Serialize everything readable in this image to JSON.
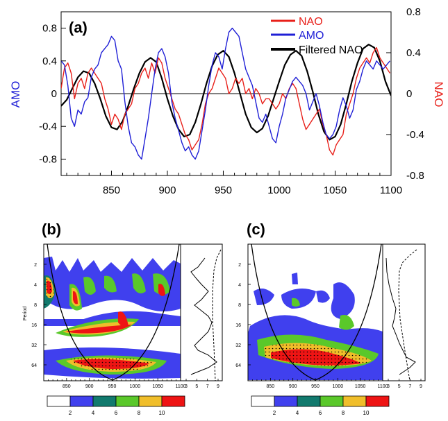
{
  "chart_data": [
    {
      "panel_label": "(a)",
      "type": "line",
      "xlabel": "",
      "ylabel_left": "AMO",
      "ylabel_right": "NAO",
      "xlim": [
        805,
        1100
      ],
      "ylim_left": [
        -1.0,
        1.0
      ],
      "ylim_right": [
        -0.8,
        0.8
      ],
      "x_ticks": [
        850,
        900,
        950,
        1000,
        1050,
        1100
      ],
      "y_ticks_left": [
        "0.8",
        "0.4",
        "0",
        "-0.4",
        "-0.8"
      ],
      "y_ticks_left_values": [
        0.8,
        0.4,
        0,
        -0.4,
        -0.8
      ],
      "y_ticks_right": [
        "0.8",
        "0.4",
        "0",
        "-0.4",
        "-0.8"
      ],
      "y_ticks_right_values": [
        0.8,
        0.4,
        0,
        -0.4,
        -0.8
      ],
      "zero_line": true,
      "legend_position": "top-right",
      "colors": {
        "NAO": "#e8201a",
        "AMO": "#1f1fd6",
        "Filtered NAO": "#000000",
        "left_axis": "#1f1fd6",
        "right_axis": "#e8201a"
      },
      "series": [
        {
          "name": "NAO",
          "axis": "right",
          "x": [
            805,
            808,
            811,
            814,
            817,
            820,
            823,
            826,
            829,
            832,
            835,
            838,
            841,
            844,
            847,
            850,
            853,
            856,
            859,
            862,
            865,
            868,
            871,
            874,
            877,
            880,
            883,
            886,
            889,
            892,
            895,
            898,
            901,
            904,
            907,
            910,
            913,
            916,
            919,
            922,
            925,
            928,
            931,
            934,
            937,
            940,
            943,
            946,
            949,
            952,
            955,
            958,
            961,
            964,
            967,
            970,
            973,
            976,
            979,
            982,
            985,
            988,
            991,
            994,
            997,
            1000,
            1003,
            1006,
            1009,
            1012,
            1015,
            1018,
            1021,
            1024,
            1027,
            1030,
            1033,
            1036,
            1039,
            1042,
            1045,
            1048,
            1051,
            1054,
            1057,
            1060,
            1063,
            1066,
            1069,
            1072,
            1075,
            1078,
            1081,
            1084,
            1087,
            1090,
            1093,
            1096,
            1099
          ],
          "y": [
            0.05,
            0.25,
            0.3,
            0.2,
            -0.05,
            0.1,
            0.15,
            0.05,
            0.2,
            0.25,
            0.2,
            0.15,
            0.1,
            -0.05,
            -0.15,
            -0.3,
            -0.2,
            -0.25,
            -0.35,
            -0.2,
            -0.15,
            -0.1,
            0.05,
            0.1,
            0.2,
            0.25,
            0.15,
            0.3,
            0.2,
            0.35,
            0.3,
            0.15,
            0.05,
            -0.05,
            -0.15,
            -0.2,
            -0.3,
            -0.4,
            -0.45,
            -0.55,
            -0.5,
            -0.45,
            -0.3,
            -0.1,
            0.0,
            0.05,
            0.15,
            0.25,
            0.2,
            0.15,
            0.0,
            0.05,
            0.15,
            0.1,
            0.15,
            0.0,
            0.05,
            -0.05,
            0.05,
            0.0,
            -0.1,
            -0.05,
            -0.05,
            -0.1,
            -0.15,
            -0.1,
            0.0,
            -0.05,
            0.05,
            0.1,
            0.05,
            -0.1,
            -0.25,
            -0.35,
            -0.3,
            -0.25,
            -0.2,
            -0.15,
            -0.3,
            -0.4,
            -0.55,
            -0.6,
            -0.5,
            -0.45,
            -0.4,
            -0.2,
            -0.1,
            0.0,
            0.15,
            0.25,
            0.3,
            0.35,
            0.3,
            0.4,
            0.45,
            0.35,
            0.3,
            0.25,
            0.2
          ]
        },
        {
          "name": "AMO",
          "axis": "left",
          "x": [
            805,
            808,
            811,
            814,
            817,
            820,
            823,
            826,
            829,
            832,
            835,
            838,
            841,
            844,
            847,
            850,
            853,
            856,
            859,
            862,
            865,
            868,
            871,
            874,
            877,
            880,
            883,
            886,
            889,
            892,
            895,
            898,
            901,
            904,
            907,
            910,
            913,
            916,
            919,
            922,
            925,
            928,
            931,
            934,
            937,
            940,
            943,
            946,
            949,
            952,
            955,
            958,
            961,
            964,
            967,
            970,
            973,
            976,
            979,
            982,
            985,
            988,
            991,
            994,
            997,
            1000,
            1003,
            1006,
            1009,
            1012,
            1015,
            1018,
            1021,
            1024,
            1027,
            1030,
            1033,
            1036,
            1039,
            1042,
            1045,
            1048,
            1051,
            1054,
            1057,
            1060,
            1063,
            1066,
            1069,
            1072,
            1075,
            1078,
            1081,
            1084,
            1087,
            1090,
            1093,
            1096,
            1099
          ],
          "y": [
            0.4,
            0.35,
            0.1,
            -0.3,
            -0.4,
            -0.2,
            -0.25,
            -0.1,
            -0.05,
            0.2,
            0.3,
            0.35,
            0.5,
            0.55,
            0.6,
            0.7,
            0.65,
            0.4,
            0.3,
            -0.1,
            -0.4,
            -0.6,
            -0.65,
            -0.75,
            -0.8,
            -0.55,
            -0.3,
            0.0,
            0.3,
            0.5,
            0.55,
            0.45,
            0.25,
            -0.1,
            -0.3,
            -0.45,
            -0.6,
            -0.7,
            -0.65,
            -0.75,
            -0.8,
            -0.7,
            -0.45,
            -0.2,
            0.1,
            0.35,
            0.5,
            0.45,
            0.3,
            0.55,
            0.75,
            0.8,
            0.75,
            0.7,
            0.5,
            0.3,
            0.2,
            0.1,
            -0.1,
            -0.3,
            -0.35,
            -0.25,
            -0.4,
            -0.55,
            -0.6,
            -0.4,
            -0.25,
            -0.05,
            0.05,
            0.15,
            0.2,
            0.15,
            0.1,
            0.0,
            -0.2,
            -0.1,
            0.0,
            -0.15,
            -0.35,
            -0.5,
            -0.55,
            -0.5,
            -0.4,
            -0.2,
            -0.05,
            -0.15,
            -0.3,
            -0.2,
            0.05,
            0.15,
            0.3,
            0.4,
            0.35,
            0.3,
            0.4,
            0.35,
            0.3,
            0.35,
            0.4
          ]
        },
        {
          "name": "Filtered NAO",
          "axis": "right",
          "x": [
            805,
            810,
            815,
            820,
            825,
            830,
            835,
            840,
            845,
            850,
            855,
            860,
            865,
            870,
            875,
            880,
            885,
            890,
            895,
            900,
            905,
            910,
            915,
            920,
            925,
            930,
            935,
            940,
            945,
            950,
            955,
            960,
            965,
            970,
            975,
            980,
            985,
            990,
            995,
            1000,
            1005,
            1010,
            1015,
            1020,
            1025,
            1030,
            1035,
            1040,
            1045,
            1050,
            1055,
            1060,
            1065,
            1070,
            1075,
            1080,
            1085,
            1090,
            1095,
            1100
          ],
          "y": [
            -0.12,
            -0.06,
            0.05,
            0.16,
            0.22,
            0.2,
            0.1,
            -0.05,
            -0.22,
            -0.33,
            -0.35,
            -0.27,
            -0.12,
            0.05,
            0.2,
            0.31,
            0.35,
            0.31,
            0.15,
            -0.05,
            -0.22,
            -0.35,
            -0.42,
            -0.4,
            -0.28,
            -0.1,
            0.1,
            0.27,
            0.38,
            0.42,
            0.36,
            0.2,
            0.0,
            -0.2,
            -0.33,
            -0.38,
            -0.34,
            -0.22,
            -0.05,
            0.12,
            0.28,
            0.38,
            0.42,
            0.37,
            0.22,
            0.02,
            -0.2,
            -0.37,
            -0.45,
            -0.42,
            -0.3,
            -0.1,
            0.12,
            0.3,
            0.44,
            0.48,
            0.45,
            0.32,
            0.12,
            -0.02
          ]
        }
      ]
    },
    {
      "panel_label": "(b)",
      "type": "heatmap",
      "ylabel": "Period",
      "x_ticks": [
        850,
        900,
        950,
        1000,
        1050,
        1100
      ],
      "y_ticks": [
        "2",
        "4",
        "8",
        "16",
        "32",
        "64"
      ],
      "side_x_ticks": [
        "3",
        "5",
        "7",
        "9"
      ],
      "colorbar_levels": [
        "2",
        "4",
        "6",
        "8",
        "10"
      ],
      "colorbar_colors": [
        "#ffffff",
        "#4040ee",
        "#127a6e",
        "#5ac82a",
        "#f0be2a",
        "#ee1414"
      ],
      "description": "wavelet power spectrum of AMO with cone of influence and global spectrum"
    },
    {
      "panel_label": "(c)",
      "type": "heatmap",
      "ylabel": "Period",
      "x_ticks": [
        850,
        900,
        950,
        1000,
        1050,
        1100
      ],
      "y_ticks": [
        "2",
        "4",
        "8",
        "16",
        "32",
        "64"
      ],
      "side_x_ticks": [
        "3",
        "5",
        "7",
        "9"
      ],
      "colorbar_levels": [
        "2",
        "4",
        "6",
        "8",
        "10"
      ],
      "colorbar_colors": [
        "#ffffff",
        "#4040ee",
        "#127a6e",
        "#5ac82a",
        "#f0be2a",
        "#ee1414"
      ],
      "description": "wavelet power spectrum of NAO with cone of influence and global spectrum"
    }
  ]
}
